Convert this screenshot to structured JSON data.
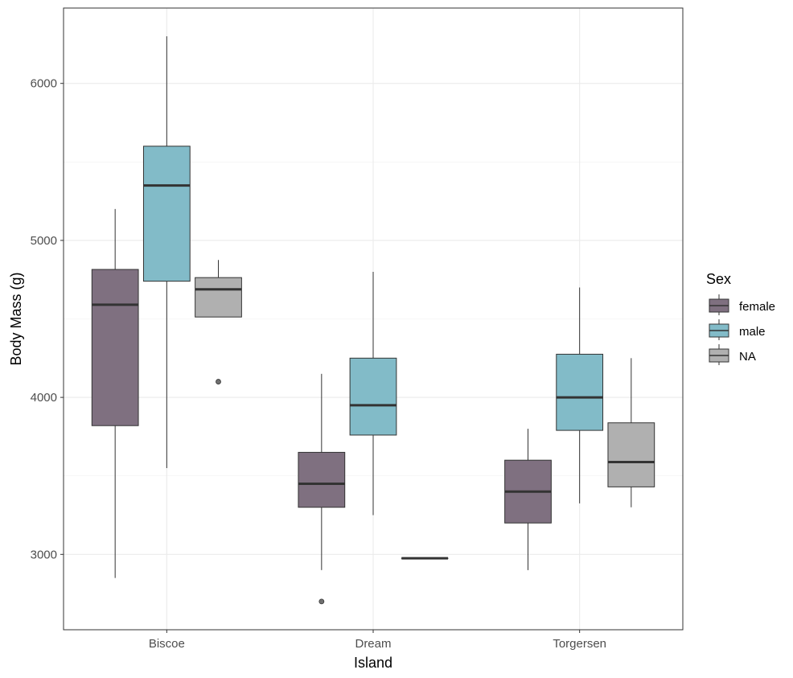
{
  "chart_data": {
    "type": "boxplot",
    "title": "",
    "xlabel": "Island",
    "ylabel": "Body Mass (g)",
    "categories": [
      "Biscoe",
      "Dream",
      "Torgersen"
    ],
    "ylim": [
      2520,
      6480
    ],
    "yticks": [
      3000,
      4000,
      5000,
      6000
    ],
    "grid": true,
    "legend": {
      "title": "Sex",
      "position": "right"
    },
    "series": [
      {
        "name": "female",
        "color": "#7f7080",
        "boxes": [
          {
            "category": "Biscoe",
            "lower_whisker": 2850,
            "q1": 3820,
            "median": 4590,
            "q3": 4815,
            "upper_whisker": 5200,
            "outliers": []
          },
          {
            "category": "Dream",
            "lower_whisker": 2900,
            "q1": 3300,
            "median": 3450,
            "q3": 3650,
            "upper_whisker": 4150,
            "outliers": [
              2700
            ]
          },
          {
            "category": "Torgersen",
            "lower_whisker": 2900,
            "q1": 3200,
            "median": 3400,
            "q3": 3600,
            "upper_whisker": 3800,
            "outliers": []
          }
        ]
      },
      {
        "name": "male",
        "color": "#82bbc8",
        "boxes": [
          {
            "category": "Biscoe",
            "lower_whisker": 3550,
            "q1": 4740,
            "median": 5350,
            "q3": 5600,
            "upper_whisker": 6300,
            "outliers": []
          },
          {
            "category": "Dream",
            "lower_whisker": 3250,
            "q1": 3760,
            "median": 3950,
            "q3": 4250,
            "upper_whisker": 4800,
            "outliers": []
          },
          {
            "category": "Torgersen",
            "lower_whisker": 3325,
            "q1": 3790,
            "median": 4000,
            "q3": 4275,
            "upper_whisker": 4700,
            "outliers": []
          }
        ]
      },
      {
        "name": "NA",
        "color": "#b0b0b0",
        "boxes": [
          {
            "category": "Biscoe",
            "lower_whisker": 4512,
            "q1": 4512,
            "median": 4688,
            "q3": 4763,
            "upper_whisker": 4875,
            "outliers": [
              4100
            ]
          },
          {
            "category": "Dream",
            "lower_whisker": 2975,
            "q1": 2975,
            "median": 2975,
            "q3": 2975,
            "upper_whisker": 2975,
            "outliers": []
          },
          {
            "category": "Torgersen",
            "lower_whisker": 3300,
            "q1": 3430,
            "median": 3588,
            "q3": 3838,
            "upper_whisker": 4250,
            "outliers": []
          }
        ]
      }
    ]
  }
}
